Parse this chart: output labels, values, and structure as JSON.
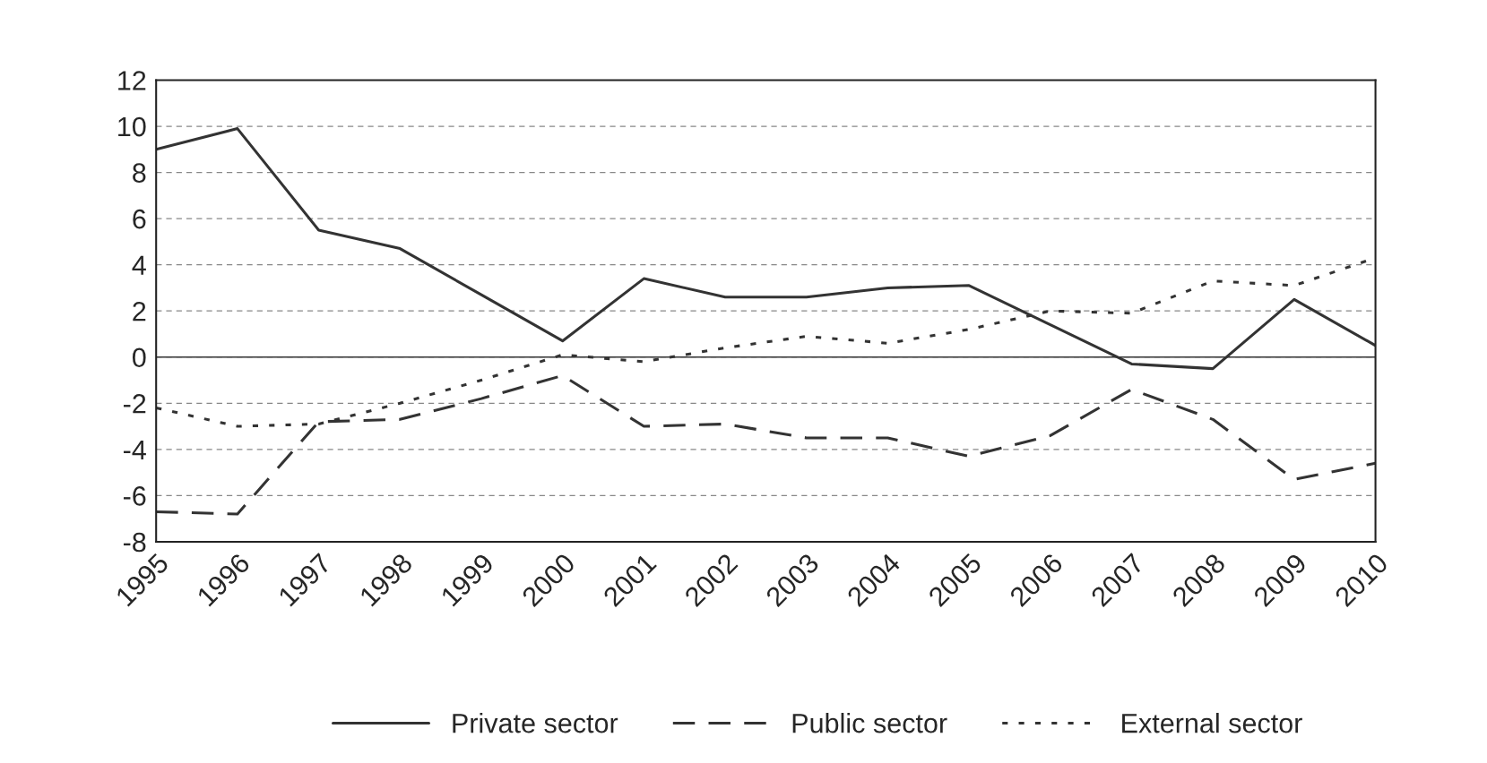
{
  "chart_data": {
    "type": "line",
    "categories": [
      "1995",
      "1996",
      "1997",
      "1998",
      "1999",
      "2000",
      "2001",
      "2002",
      "2003",
      "2004",
      "2005",
      "2006",
      "2007",
      "2008",
      "2009",
      "2010"
    ],
    "series": [
      {
        "name": "Private sector",
        "color": "#333333",
        "line_style": "solid",
        "values": [
          9.0,
          9.9,
          5.5,
          4.7,
          2.7,
          0.7,
          3.4,
          2.6,
          2.6,
          3.0,
          3.1,
          1.4,
          -0.3,
          -0.5,
          2.5,
          0.5
        ]
      },
      {
        "name": "Public sector",
        "color": "#333333",
        "line_style": "dashed",
        "values": [
          -6.7,
          -6.8,
          -2.8,
          -2.7,
          -1.8,
          -0.8,
          -3.0,
          -2.9,
          -3.5,
          -3.5,
          -4.3,
          -3.4,
          -1.4,
          -2.7,
          -5.3,
          -4.6
        ]
      },
      {
        "name": "External sector",
        "color": "#333333",
        "line_style": "dotted",
        "values": [
          -2.2,
          -3.0,
          -2.9,
          -2.0,
          -1.0,
          0.1,
          -0.2,
          0.4,
          0.9,
          0.6,
          1.2,
          2.0,
          1.9,
          3.3,
          3.1,
          4.3
        ]
      }
    ],
    "ylim": [
      -8,
      12
    ],
    "yticks": [
      -8,
      -6,
      -4,
      -2,
      0,
      2,
      4,
      6,
      8,
      10,
      12
    ],
    "ref_lines": [
      {
        "axis": "y",
        "value": 0,
        "color": "#333333",
        "line_style": "solid"
      }
    ],
    "grid": "y",
    "legend": "bottom",
    "marker": "none"
  }
}
